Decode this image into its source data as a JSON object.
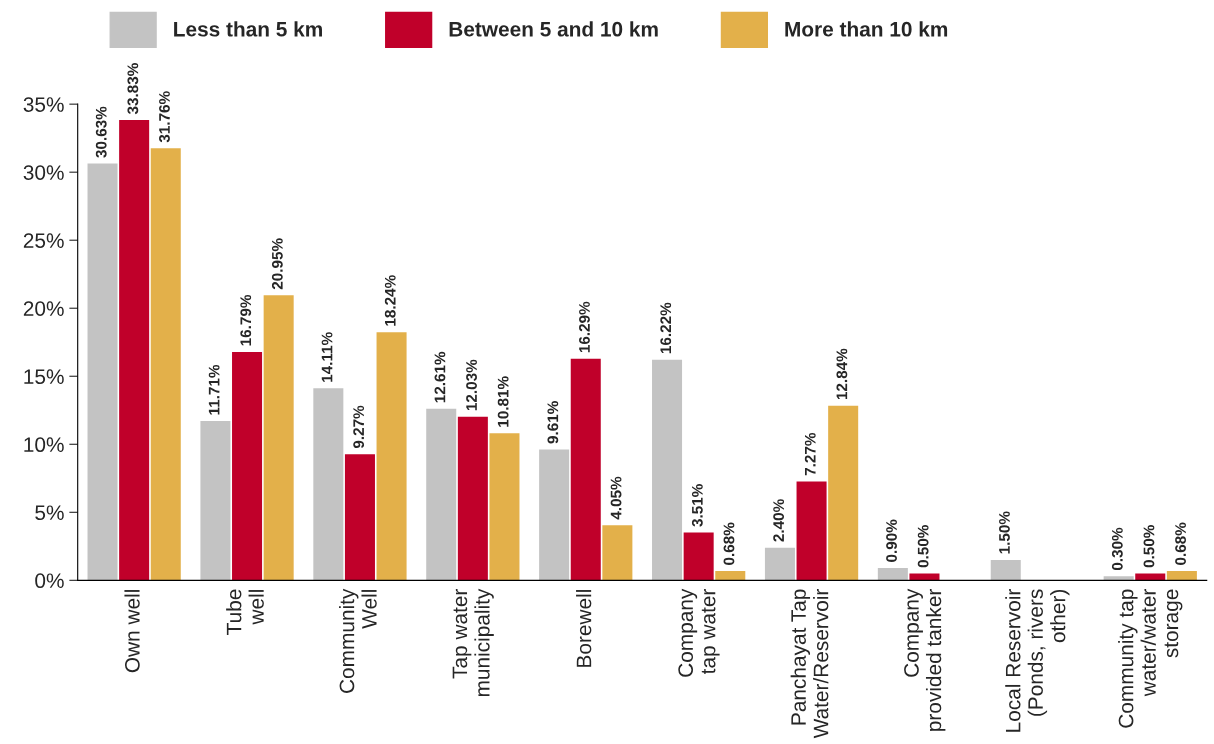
{
  "chart_data": {
    "type": "bar",
    "categories": [
      "Own well",
      "Tube\nwell",
      "Community\nWell",
      "Tap water\nmunicipality",
      "Borewell",
      "Company\ntap water",
      "Panchayat Tap\nWater/Reservoir",
      "Company\nprovided tanker",
      "Local Reservoir\n(Ponds, rivers\nother)",
      "Community tap\nwater/water\nstorage"
    ],
    "series": [
      {
        "name": "Less than 5 km",
        "color": "#c3c3c3",
        "values": [
          30.63,
          11.71,
          14.11,
          12.61,
          9.61,
          16.22,
          2.4,
          0.9,
          1.5,
          0.3
        ],
        "value_labels": [
          "30.63%",
          "11.71%",
          "14.11%",
          "12.61%",
          "9.61%",
          "16.22%",
          "2.40%",
          "0.90%",
          "1.50%",
          "0.30%"
        ]
      },
      {
        "name": "Between 5 and 10 km",
        "color": "#c0002a",
        "values": [
          33.83,
          16.79,
          9.27,
          12.03,
          16.29,
          3.51,
          7.27,
          0.5,
          null,
          0.5
        ],
        "value_labels": [
          "33.83%",
          "16.79%",
          "9.27%",
          "12.03%",
          "16.29%",
          "3.51%",
          "7.27%",
          "0.50%",
          null,
          "0.50%"
        ]
      },
      {
        "name": "More than 10 km",
        "color": "#e3b04a",
        "values": [
          31.76,
          20.95,
          18.24,
          10.81,
          4.05,
          0.68,
          12.84,
          null,
          null,
          0.68
        ],
        "value_labels": [
          "31.76%",
          "20.95%",
          "18.24%",
          "10.81%",
          "4.05%",
          "0.68%",
          "12.84%",
          null,
          null,
          "0.68%"
        ]
      }
    ],
    "ylim": [
      0,
      35
    ],
    "yticks": [
      {
        "value": 0,
        "label": "0%"
      },
      {
        "value": 5,
        "label": "5%"
      },
      {
        "value": 10,
        "label": "10%"
      },
      {
        "value": 15,
        "label": "15%"
      },
      {
        "value": 20,
        "label": "20%"
      },
      {
        "value": 25,
        "label": "25%"
      },
      {
        "value": 30,
        "label": "30%"
      },
      {
        "value": 35,
        "label": "35%"
      }
    ],
    "grid": false,
    "legend": "top"
  }
}
